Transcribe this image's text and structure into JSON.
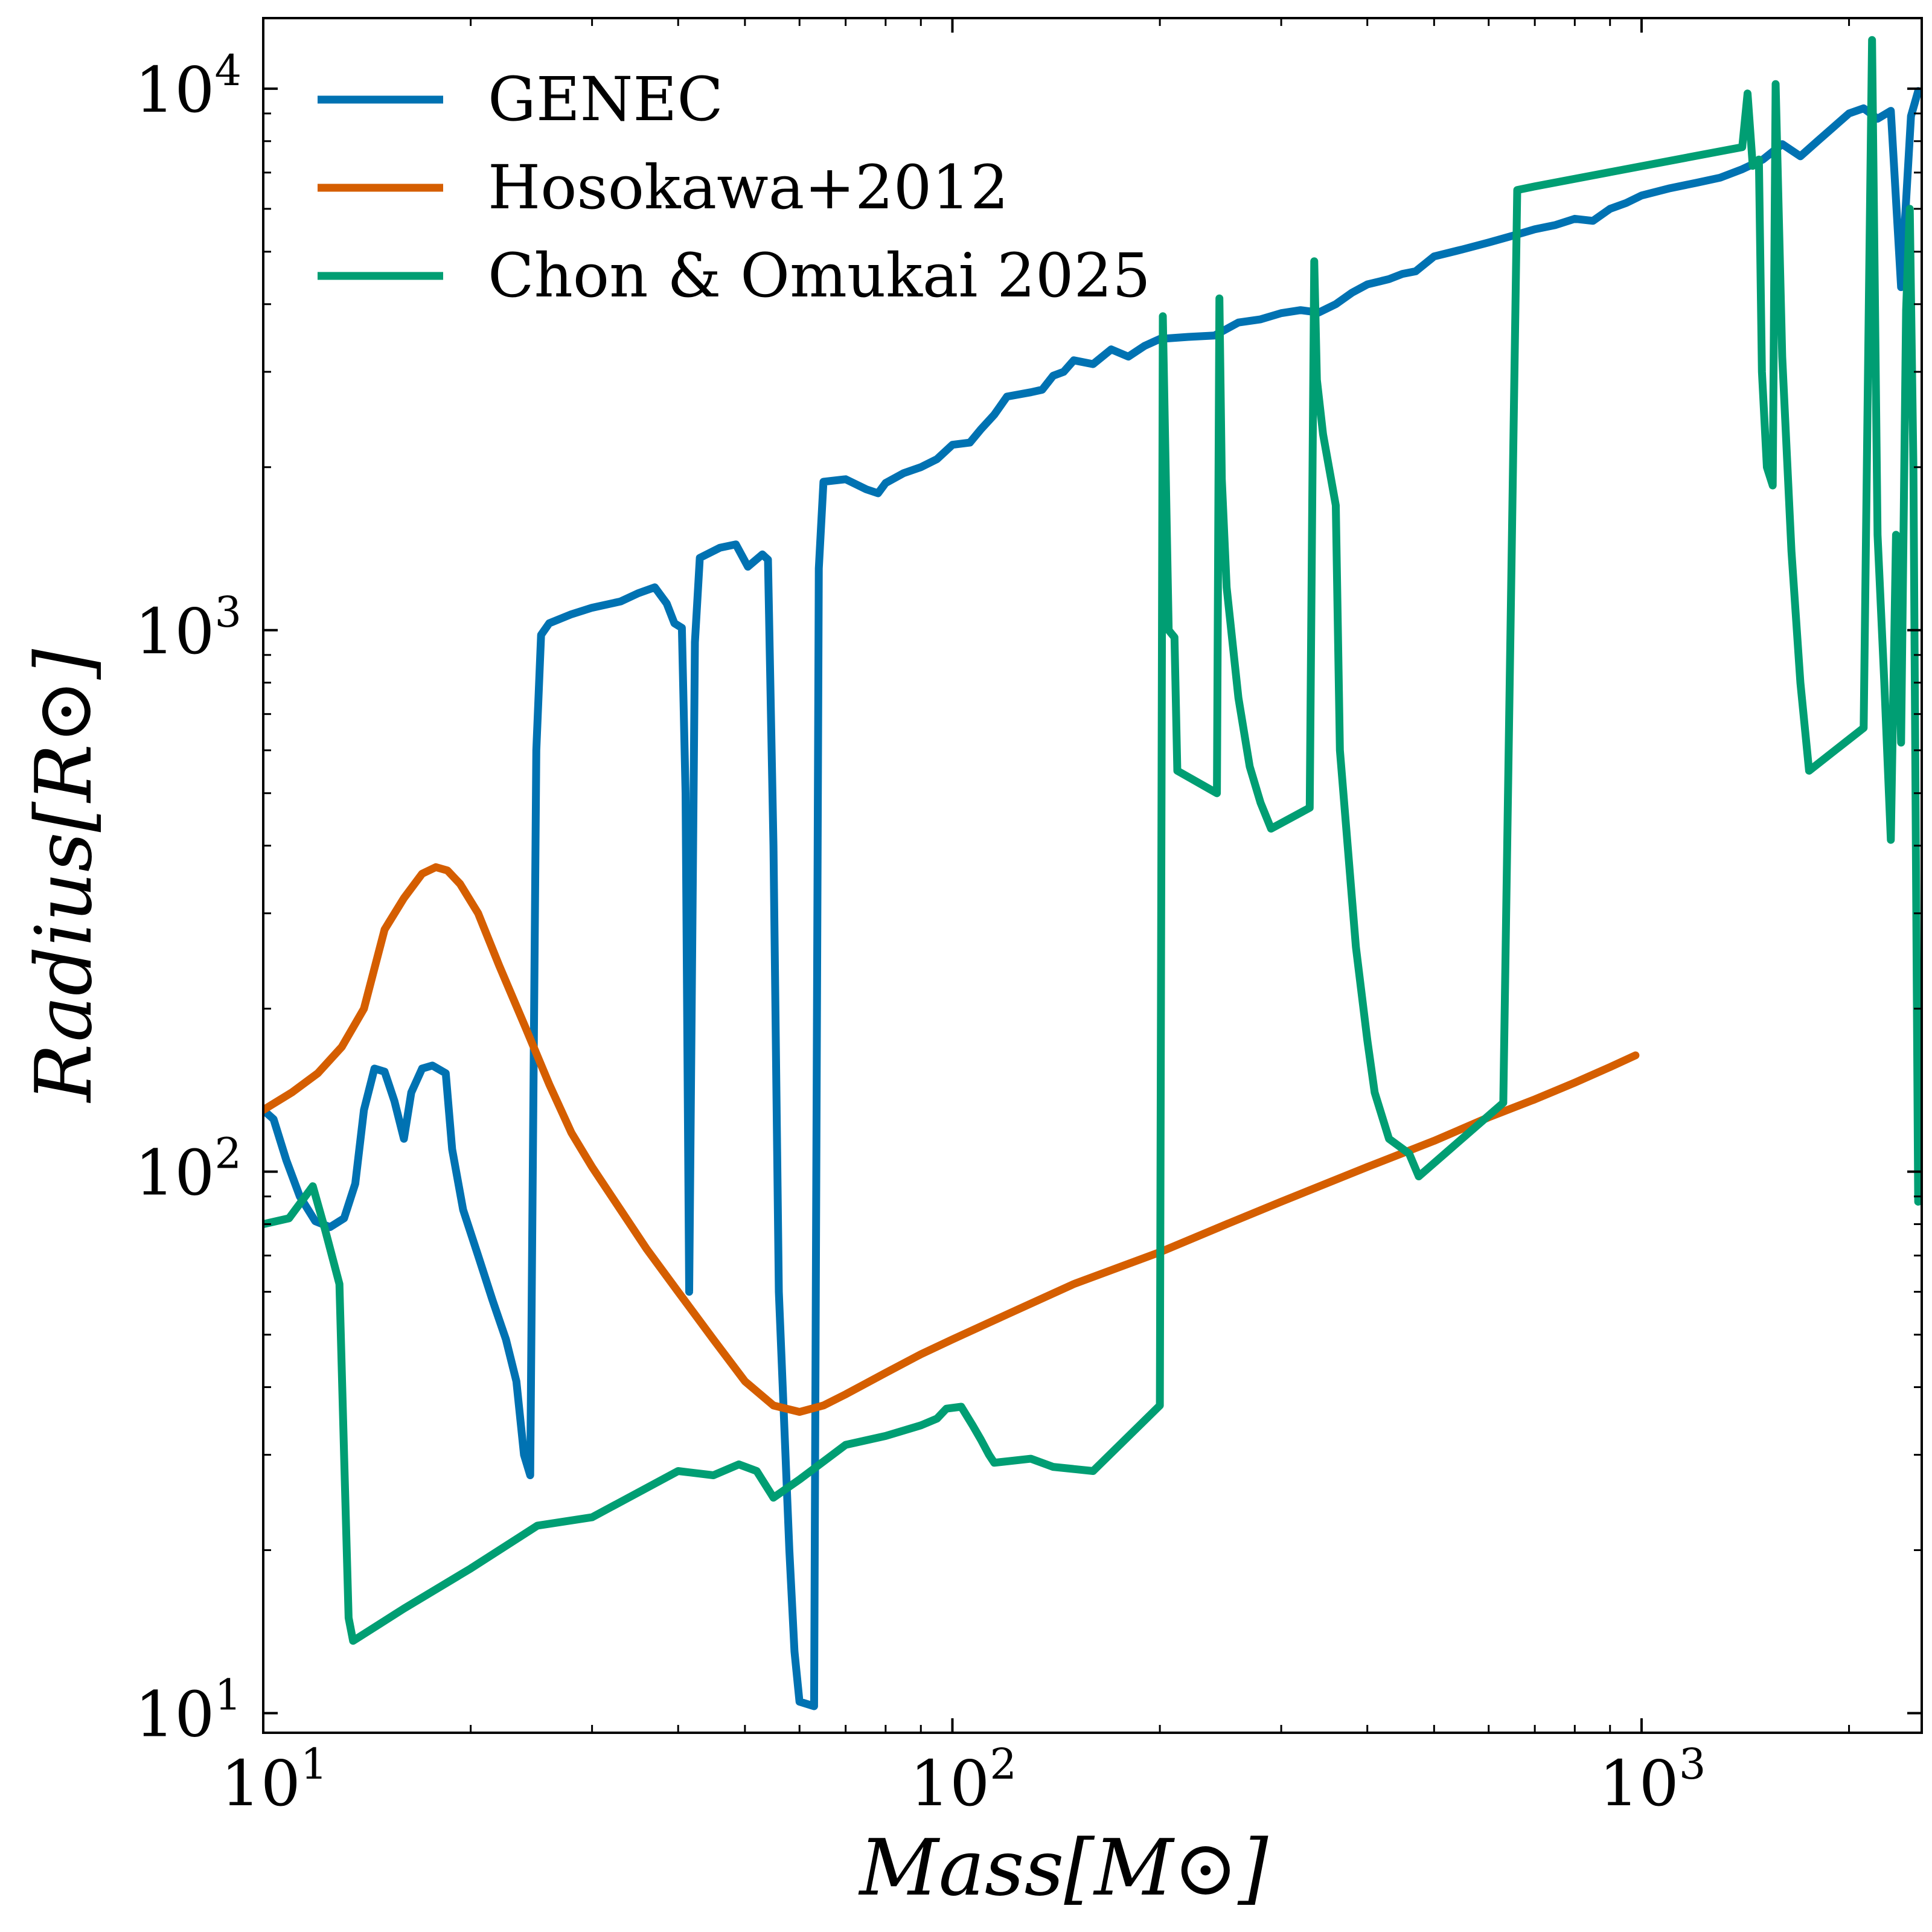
{
  "chart_data": {
    "type": "line",
    "xlabel": "Mass[M⊙]",
    "ylabel": "Radius[R⊙]",
    "xscale": "log",
    "yscale": "log",
    "xlim": [
      10,
      2550
    ],
    "ylim": [
      9.2,
      13500
    ],
    "grid": false,
    "legend_position": "top-left",
    "x_ticks": [
      {
        "base": "10",
        "exp": "1"
      },
      {
        "base": "10",
        "exp": "2"
      },
      {
        "base": "10",
        "exp": "3"
      }
    ],
    "y_ticks": [
      {
        "base": "10",
        "exp": "1"
      },
      {
        "base": "10",
        "exp": "2"
      },
      {
        "base": "10",
        "exp": "3"
      },
      {
        "base": "10",
        "exp": "4"
      }
    ],
    "series": [
      {
        "name": "GENEC",
        "color": "#0072b2",
        "points": [
          [
            10,
            130
          ],
          [
            10.35,
            125
          ],
          [
            10.8,
            105
          ],
          [
            11.3,
            90
          ],
          [
            11.9,
            81
          ],
          [
            12.5,
            79
          ],
          [
            13.1,
            82
          ],
          [
            13.6,
            95
          ],
          [
            14.0,
            130
          ],
          [
            14.5,
            155
          ],
          [
            15.0,
            153
          ],
          [
            15.5,
            135
          ],
          [
            16.0,
            115
          ],
          [
            16.4,
            140
          ],
          [
            17.0,
            155
          ],
          [
            17.6,
            157
          ],
          [
            18.4,
            152
          ],
          [
            18.8,
            110
          ],
          [
            19.5,
            85
          ],
          [
            20.5,
            70
          ],
          [
            21.5,
            58
          ],
          [
            22.5,
            49
          ],
          [
            23.3,
            41
          ],
          [
            23.9,
            30
          ],
          [
            24.4,
            27.5
          ],
          [
            24.9,
            600
          ],
          [
            25.3,
            980
          ],
          [
            26,
            1030
          ],
          [
            28,
            1070
          ],
          [
            30,
            1100
          ],
          [
            33,
            1130
          ],
          [
            35,
            1170
          ],
          [
            37,
            1200
          ],
          [
            38.5,
            1120
          ],
          [
            39.5,
            1030
          ],
          [
            40.5,
            1010
          ],
          [
            41.0,
            500
          ],
          [
            41.5,
            60
          ],
          [
            42.3,
            950
          ],
          [
            43,
            1360
          ],
          [
            46,
            1420
          ],
          [
            48.5,
            1440
          ],
          [
            50.5,
            1310
          ],
          [
            53,
            1380
          ],
          [
            54,
            1350
          ],
          [
            55,
            400
          ],
          [
            56,
            60
          ],
          [
            58,
            20
          ],
          [
            59,
            13
          ],
          [
            60,
            10.5
          ],
          [
            63,
            10.3
          ],
          [
            64,
            1300
          ],
          [
            65,
            1880
          ],
          [
            70,
            1900
          ],
          [
            75,
            1820
          ],
          [
            78,
            1790
          ],
          [
            80,
            1870
          ],
          [
            85,
            1950
          ],
          [
            90,
            2000
          ],
          [
            95,
            2070
          ],
          [
            100,
            2200
          ],
          [
            106,
            2220
          ],
          [
            110,
            2350
          ],
          [
            115,
            2500
          ],
          [
            120,
            2700
          ],
          [
            130,
            2750
          ],
          [
            135,
            2780
          ],
          [
            140,
            2950
          ],
          [
            145,
            3000
          ],
          [
            150,
            3150
          ],
          [
            160,
            3100
          ],
          [
            170,
            3300
          ],
          [
            180,
            3200
          ],
          [
            190,
            3350
          ],
          [
            200,
            3450
          ],
          [
            220,
            3480
          ],
          [
            240,
            3500
          ],
          [
            260,
            3700
          ],
          [
            280,
            3750
          ],
          [
            300,
            3850
          ],
          [
            320,
            3900
          ],
          [
            340,
            3860
          ],
          [
            360,
            4000
          ],
          [
            380,
            4200
          ],
          [
            400,
            4350
          ],
          [
            430,
            4450
          ],
          [
            450,
            4550
          ],
          [
            470,
            4600
          ],
          [
            500,
            4900
          ],
          [
            550,
            5050
          ],
          [
            600,
            5200
          ],
          [
            650,
            5350
          ],
          [
            700,
            5500
          ],
          [
            750,
            5600
          ],
          [
            800,
            5750
          ],
          [
            850,
            5700
          ],
          [
            900,
            6000
          ],
          [
            950,
            6150
          ],
          [
            1000,
            6350
          ],
          [
            1100,
            6550
          ],
          [
            1200,
            6700
          ],
          [
            1300,
            6850
          ],
          [
            1400,
            7100
          ],
          [
            1500,
            7400
          ],
          [
            1600,
            7900
          ],
          [
            1700,
            7500
          ],
          [
            1800,
            8000
          ],
          [
            1900,
            8500
          ],
          [
            2000,
            9000
          ],
          [
            2100,
            9200
          ],
          [
            2200,
            8800
          ],
          [
            2300,
            9100
          ],
          [
            2380,
            4300
          ],
          [
            2460,
            8900
          ],
          [
            2520,
            9900
          ]
        ]
      },
      {
        "name": "Hosokawa+2012",
        "color": "#d55e00",
        "points": [
          [
            10,
            130
          ],
          [
            11,
            140
          ],
          [
            12,
            152
          ],
          [
            13,
            170
          ],
          [
            14,
            200
          ],
          [
            15,
            280
          ],
          [
            16,
            320
          ],
          [
            17,
            355
          ],
          [
            17.8,
            365
          ],
          [
            18.5,
            360
          ],
          [
            19.3,
            340
          ],
          [
            20.5,
            300
          ],
          [
            22,
            240
          ],
          [
            24,
            185
          ],
          [
            26,
            145
          ],
          [
            28,
            118
          ],
          [
            30,
            102
          ],
          [
            33,
            85
          ],
          [
            36,
            72
          ],
          [
            40,
            60
          ],
          [
            45,
            49
          ],
          [
            50,
            41
          ],
          [
            55,
            37
          ],
          [
            60,
            36
          ],
          [
            65,
            37
          ],
          [
            70,
            38.8
          ],
          [
            80,
            42.5
          ],
          [
            90,
            46
          ],
          [
            100,
            49
          ],
          [
            120,
            54.5
          ],
          [
            150,
            62
          ],
          [
            200,
            71
          ],
          [
            250,
            80
          ],
          [
            300,
            88
          ],
          [
            400,
            102
          ],
          [
            500,
            114
          ],
          [
            600,
            126
          ],
          [
            700,
            136
          ],
          [
            800,
            146
          ],
          [
            900,
            156
          ],
          [
            980,
            164
          ]
        ]
      },
      {
        "name": "Chon & Omukai 2025",
        "color": "#009e73",
        "points": [
          [
            10,
            80
          ],
          [
            10.9,
            82
          ],
          [
            11.8,
            94
          ],
          [
            12.3,
            78
          ],
          [
            12.9,
            62
          ],
          [
            13.1,
            30
          ],
          [
            13.3,
            15
          ],
          [
            13.5,
            13.6
          ],
          [
            16,
            15.6
          ],
          [
            20,
            18.5
          ],
          [
            25,
            22.2
          ],
          [
            30,
            23
          ],
          [
            40,
            28
          ],
          [
            45,
            27.5
          ],
          [
            49,
            28.8
          ],
          [
            52,
            28
          ],
          [
            55,
            25
          ],
          [
            60,
            27
          ],
          [
            70,
            31.3
          ],
          [
            80,
            32.5
          ],
          [
            90,
            34
          ],
          [
            95,
            35
          ],
          [
            98,
            36.5
          ],
          [
            103,
            36.8
          ],
          [
            107,
            34
          ],
          [
            110,
            32
          ],
          [
            113,
            30
          ],
          [
            115,
            29
          ],
          [
            130,
            29.5
          ],
          [
            140,
            28.5
          ],
          [
            160,
            28
          ],
          [
            200,
            37
          ],
          [
            202,
            3800
          ],
          [
            206,
            1000
          ],
          [
            210,
            970
          ],
          [
            212,
            550
          ],
          [
            242,
            500
          ],
          [
            244,
            4100
          ],
          [
            246,
            1900
          ],
          [
            250,
            1200
          ],
          [
            260,
            750
          ],
          [
            270,
            560
          ],
          [
            280,
            480
          ],
          [
            290,
            430
          ],
          [
            330,
            470
          ],
          [
            335,
            4800
          ],
          [
            338,
            2900
          ],
          [
            345,
            2300
          ],
          [
            360,
            1700
          ],
          [
            365,
            600
          ],
          [
            385,
            260
          ],
          [
            400,
            175
          ],
          [
            410,
            140
          ],
          [
            430,
            115
          ],
          [
            460,
            108
          ],
          [
            475,
            98
          ],
          [
            630,
            134
          ],
          [
            660,
            6500
          ],
          [
            700,
            6600
          ],
          [
            1400,
            7800
          ],
          [
            1425,
            9800
          ],
          [
            1450,
            7200
          ],
          [
            1480,
            7400
          ],
          [
            1495,
            3000
          ],
          [
            1520,
            2000
          ],
          [
            1550,
            1850
          ],
          [
            1565,
            10200
          ],
          [
            1600,
            3200
          ],
          [
            1650,
            1400
          ],
          [
            1700,
            800
          ],
          [
            1750,
            550
          ],
          [
            2100,
            660
          ],
          [
            2160,
            12300
          ],
          [
            2200,
            1500
          ],
          [
            2250,
            800
          ],
          [
            2300,
            410
          ],
          [
            2340,
            1500
          ],
          [
            2380,
            620
          ],
          [
            2420,
            3900
          ],
          [
            2450,
            6000
          ],
          [
            2480,
            2000
          ],
          [
            2520,
            88
          ]
        ]
      }
    ]
  }
}
